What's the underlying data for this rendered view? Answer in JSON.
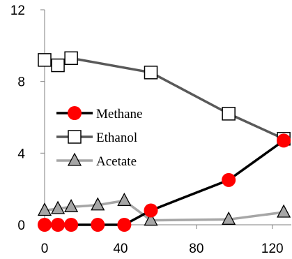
{
  "chart_data": {
    "type": "line",
    "xlim": [
      0,
      130
    ],
    "ylim": [
      0,
      12
    ],
    "x_ticks": [
      0,
      40,
      80,
      120
    ],
    "y_ticks": [
      0,
      4,
      8,
      12
    ],
    "x_tick_labels": [
      "0",
      "40",
      "80",
      "120"
    ],
    "y_tick_labels": [
      "0",
      "4",
      "8",
      "12"
    ],
    "grid": false,
    "legend_position": "left-center",
    "series": [
      {
        "name": "Methane",
        "marker": "circle",
        "line_color": "#000000",
        "marker_color": "#ff0000",
        "x": [
          0,
          7,
          14,
          28,
          42,
          56,
          97,
          126
        ],
        "y": [
          0,
          0,
          0,
          0,
          0,
          0.8,
          2.5,
          4.7
        ]
      },
      {
        "name": "Ethanol",
        "marker": "square",
        "line_color": "#595959",
        "marker_color": "#ffffff",
        "x": [
          0,
          7,
          14,
          56,
          97,
          126
        ],
        "y": [
          9.2,
          8.9,
          9.3,
          8.5,
          6.2,
          4.8
        ]
      },
      {
        "name": "Acetate",
        "marker": "triangle",
        "line_color": "#a6a6a6",
        "marker_color": "#a6a6a6",
        "x": [
          0,
          7,
          14,
          28,
          42,
          56,
          97,
          126
        ],
        "y": [
          0.8,
          0.9,
          1.0,
          1.1,
          1.35,
          0.25,
          0.3,
          0.7
        ]
      }
    ]
  }
}
